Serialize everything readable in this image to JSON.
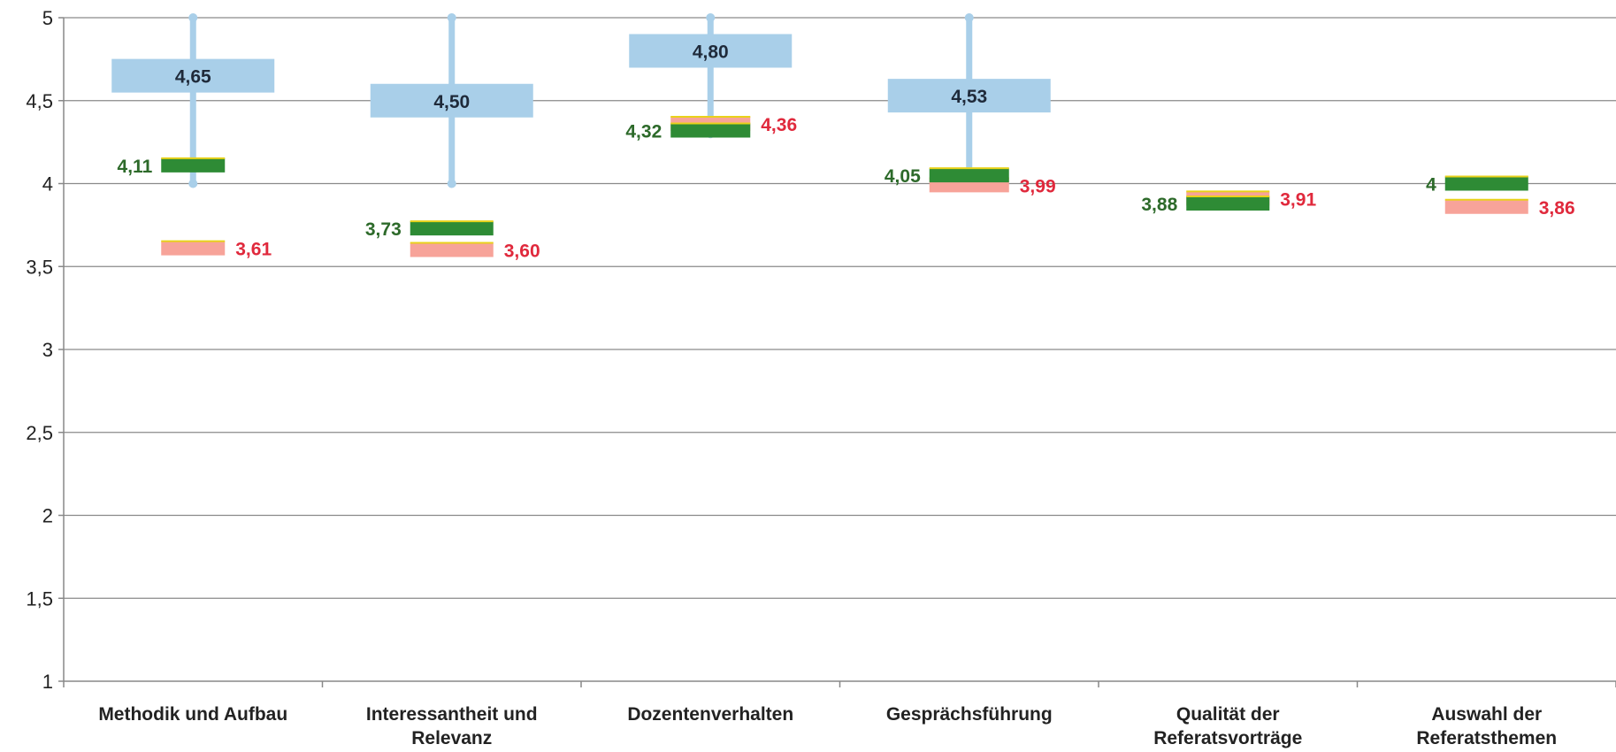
{
  "chart_data": {
    "type": "range-marker",
    "title": "",
    "xlabel": "",
    "ylabel": "",
    "ylim": [
      1,
      5
    ],
    "yticks": [
      "1",
      "1,5",
      "2",
      "2,5",
      "3",
      "3,5",
      "4",
      "4,5",
      "5"
    ],
    "ytick_values": [
      1,
      1.5,
      2,
      2.5,
      3,
      3.5,
      4,
      4.5,
      5
    ],
    "grid": true,
    "legend": "none",
    "categories": [
      "Methodik und Aufbau",
      "Interessantheit und Relevanz",
      "Dozentenverhalten",
      "Gesprächsführung",
      "Qualität der Referatsvorträge",
      "Auswahl der Referatsthemen"
    ],
    "category_lines": [
      [
        "Methodik und Aufbau"
      ],
      [
        "Interessantheit und",
        "Relevanz"
      ],
      [
        "Dozentenverhalten"
      ],
      [
        "Gesprächsführung"
      ],
      [
        "Qualität der",
        "Referatsvorträge"
      ],
      [
        "Auswahl der",
        "Referatsthemen"
      ]
    ],
    "series": [
      {
        "values": [
          4.65,
          4.5,
          4.8,
          4.53,
          null,
          null
        ],
        "labels": [
          "4,65",
          "4,50",
          "4,80",
          "4,53",
          "",
          ""
        ],
        "range": [
          [
            4,
            5
          ],
          [
            4,
            5
          ],
          [
            4.3,
            5
          ],
          [
            4,
            5
          ],
          null,
          null
        ],
        "color": "#a9cfe9"
      },
      {
        "values": [
          4.11,
          3.73,
          4.32,
          4.05,
          3.88,
          4
        ],
        "labels": [
          "4,11",
          "3,73",
          "4,32",
          "4,05",
          "3,88",
          "4"
        ],
        "color": "#2e8b35"
      },
      {
        "values": [
          3.61,
          3.6,
          4.36,
          3.99,
          3.91,
          3.86
        ],
        "labels": [
          "3,61",
          "3,60",
          "4,36",
          "3,99",
          "3,91",
          "3,86"
        ],
        "color": "#f7a399"
      }
    ],
    "colors": {
      "axis": "#888888",
      "grid": "#8a8a8a",
      "series1_label": "#1f2a3a",
      "series2_label": "#2d6a2a",
      "series3_label": "#e0293c",
      "marker_edge": "#e8d21a"
    }
  }
}
